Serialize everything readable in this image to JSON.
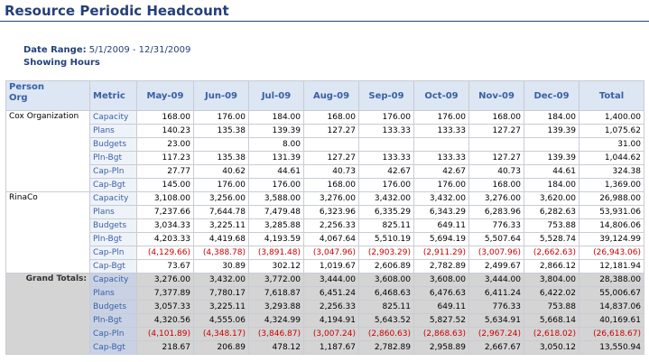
{
  "title": "Resource Periodic Headcount",
  "date_range_label": "Date Range:",
  "date_range_value": "5/1/2009 - 12/31/2009",
  "showing": "Showing Hours",
  "headers": {
    "person_org": [
      "Person",
      "Org"
    ],
    "metric": "Metric",
    "months": [
      "May-09",
      "Jun-09",
      "Jul-09",
      "Aug-09",
      "Sep-09",
      "Oct-09",
      "Nov-09",
      "Dec-09"
    ],
    "total": "Total"
  },
  "groups": [
    {
      "org": "Cox Organization",
      "rows": [
        {
          "metric": "Capacity",
          "values": [
            "168.00",
            "176.00",
            "184.00",
            "168.00",
            "176.00",
            "176.00",
            "168.00",
            "184.00",
            "1,400.00"
          ]
        },
        {
          "metric": "Plans",
          "values": [
            "140.23",
            "135.38",
            "139.39",
            "127.27",
            "133.33",
            "133.33",
            "127.27",
            "139.39",
            "1,075.62"
          ]
        },
        {
          "metric": "Budgets",
          "values": [
            "23.00",
            "",
            "8.00",
            "",
            "",
            "",
            "",
            "",
            "31.00"
          ]
        },
        {
          "metric": "Pln-Bgt",
          "values": [
            "117.23",
            "135.38",
            "131.39",
            "127.27",
            "133.33",
            "133.33",
            "127.27",
            "139.39",
            "1,044.62"
          ]
        },
        {
          "metric": "Cap-Pln",
          "values": [
            "27.77",
            "40.62",
            "44.61",
            "40.73",
            "42.67",
            "42.67",
            "40.73",
            "44.61",
            "324.38"
          ]
        },
        {
          "metric": "Cap-Bgt",
          "values": [
            "145.00",
            "176.00",
            "176.00",
            "168.00",
            "176.00",
            "176.00",
            "168.00",
            "184.00",
            "1,369.00"
          ]
        }
      ]
    },
    {
      "org": "RinaCo",
      "rows": [
        {
          "metric": "Capacity",
          "values": [
            "3,108.00",
            "3,256.00",
            "3,588.00",
            "3,276.00",
            "3,432.00",
            "3,432.00",
            "3,276.00",
            "3,620.00",
            "26,988.00"
          ]
        },
        {
          "metric": "Plans",
          "values": [
            "7,237.66",
            "7,644.78",
            "7,479.48",
            "6,323.96",
            "6,335.29",
            "6,343.29",
            "6,283.96",
            "6,282.63",
            "53,931.06"
          ]
        },
        {
          "metric": "Budgets",
          "values": [
            "3,034.33",
            "3,225.11",
            "3,285.88",
            "2,256.33",
            "825.11",
            "649.11",
            "776.33",
            "753.88",
            "14,806.06"
          ]
        },
        {
          "metric": "Pln-Bgt",
          "values": [
            "4,203.33",
            "4,419.68",
            "4,193.59",
            "4,067.64",
            "5,510.19",
            "5,694.19",
            "5,507.64",
            "5,528.74",
            "39,124.99"
          ]
        },
        {
          "metric": "Cap-Pln",
          "values": [
            "(4,129.66)",
            "(4,388.78)",
            "(3,891.48)",
            "(3,047.96)",
            "(2,903.29)",
            "(2,911.29)",
            "(3,007.96)",
            "(2,662.63)",
            "(26,943.06)"
          ]
        },
        {
          "metric": "Cap-Bgt",
          "values": [
            "73.67",
            "30.89",
            "302.12",
            "1,019.67",
            "2,606.89",
            "2,782.89",
            "2,499.67",
            "2,866.12",
            "12,181.94"
          ]
        }
      ]
    }
  ],
  "grand": {
    "label": "Grand Totals:",
    "rows": [
      {
        "metric": "Capacity",
        "values": [
          "3,276.00",
          "3,432.00",
          "3,772.00",
          "3,444.00",
          "3,608.00",
          "3,608.00",
          "3,444.00",
          "3,804.00",
          "28,388.00"
        ]
      },
      {
        "metric": "Plans",
        "values": [
          "7,377.89",
          "7,780.17",
          "7,618.87",
          "6,451.24",
          "6,468.63",
          "6,476.63",
          "6,411.24",
          "6,422.02",
          "55,006.67"
        ]
      },
      {
        "metric": "Budgets",
        "values": [
          "3,057.33",
          "3,225.11",
          "3,293.88",
          "2,256.33",
          "825.11",
          "649.11",
          "776.33",
          "753.88",
          "14,837.06"
        ]
      },
      {
        "metric": "Pln-Bgt",
        "values": [
          "4,320.56",
          "4,555.06",
          "4,324.99",
          "4,194.91",
          "5,643.52",
          "5,827.52",
          "5,634.91",
          "5,668.14",
          "40,169.61"
        ]
      },
      {
        "metric": "Cap-Pln",
        "values": [
          "(4,101.89)",
          "(4,348.17)",
          "(3,846.87)",
          "(3,007.24)",
          "(2,860.63)",
          "(2,868.63)",
          "(2,967.24)",
          "(2,618.02)",
          "(26,618.67)"
        ]
      },
      {
        "metric": "Cap-Bgt",
        "values": [
          "218.67",
          "206.89",
          "478.12",
          "1,187.67",
          "2,782.89",
          "2,958.89",
          "2,667.67",
          "3,050.12",
          "13,550.94"
        ]
      }
    ]
  },
  "colors": {
    "title": "#24407a",
    "header_bg": "#dde6f3",
    "header_text": "#3a5fa6",
    "negative": "#cc0000",
    "grand_bg": "#d4d4d4"
  }
}
